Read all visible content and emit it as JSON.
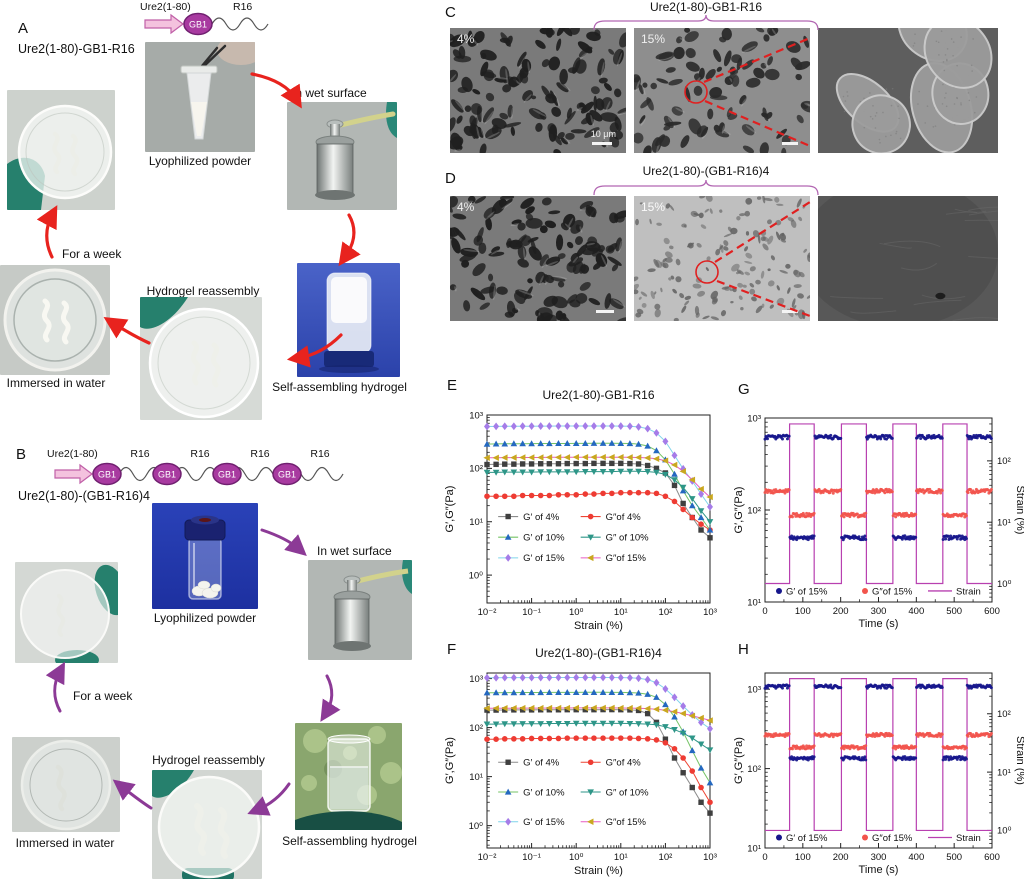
{
  "figure": {
    "panels": {
      "A": {
        "label": "A",
        "construct": "Ure2(1-80)-GB1-R16",
        "schematic": {
          "arrow_label": "Ure2(1-80)",
          "domain_label": "GB1",
          "tail_label": "R16"
        },
        "captions": {
          "powder": "Lyophilized powder",
          "wet_surface": "In wet surface",
          "hydrogel": "Self-assembling hydrogel",
          "reassembly": "Hydrogel reassembly",
          "immersed": "Immersed in water",
          "week": "For a week"
        }
      },
      "B": {
        "label": "B",
        "construct": "Ure2(1-80)-(GB1-R16)4",
        "schematic": {
          "arrow_label": "Ure2(1-80)",
          "domain_label": "GB1",
          "tail_label": "R16",
          "repeats": 4
        },
        "captions": {
          "powder": "Lyophilized powder",
          "wet_surface": "In wet surface",
          "hydrogel": "Self-assembling hydrogel",
          "reassembly": "Hydrogel reassembly",
          "immersed": "Immersed in water",
          "week": "For a week"
        }
      },
      "C": {
        "label": "C",
        "title": "Ure2(1-80)-GB1-R16",
        "labels": {
          "img1": "4%",
          "img2": "15%"
        },
        "scale_bar": "10 μm"
      },
      "D": {
        "label": "D",
        "title": "Ure2(1-80)-(GB1-R16)4",
        "labels": {
          "img1": "4%",
          "img2": "15%"
        }
      },
      "E": {
        "label": "E"
      },
      "F": {
        "label": "F"
      },
      "G": {
        "label": "G"
      },
      "H": {
        "label": "H"
      }
    }
  },
  "colors": {
    "arrow_panel_a": "#e8231e",
    "arrow_panel_b": "#8c3a96",
    "brace": "#b266b2",
    "sem_annotation": "#e02020",
    "gb1_fill": "#a83aa0",
    "schematic_arrow_fill": "#f4c2de",
    "glove": "#26806d"
  },
  "chart_data": [
    {
      "id": "E",
      "type": "line",
      "title": "Ure2(1-80)-GB1-R16",
      "xlabel": "Strain (%)",
      "ylabel": "G′,G″(Pa)",
      "xscale": "log",
      "yscale": "log",
      "xlim": [
        0.01,
        1000
      ],
      "ylim": [
        0.3,
        1000
      ],
      "x": [
        0.01,
        0.016,
        0.025,
        0.04,
        0.063,
        0.1,
        0.16,
        0.25,
        0.4,
        0.63,
        1,
        1.6,
        2.5,
        4,
        6.3,
        10,
        16,
        25,
        40,
        63,
        100,
        160,
        250,
        400,
        630,
        1000
      ],
      "series": [
        {
          "name": "G′ of 4%",
          "marker": "square",
          "color": "#3f3f3f",
          "line": "#8c8c8c",
          "values": [
            118,
            119,
            120,
            120,
            121,
            121,
            122,
            122,
            122,
            123,
            123,
            123,
            124,
            124,
            124,
            124,
            123,
            121,
            113,
            100,
            82,
            48,
            22,
            12,
            7,
            5
          ]
        },
        {
          "name": "G″of 4%",
          "marker": "circle",
          "color": "#ee3b33",
          "line": "#ee4433",
          "values": [
            30,
            30,
            30,
            30,
            31,
            31,
            31,
            31,
            32,
            32,
            32,
            33,
            33,
            34,
            34,
            35,
            35,
            35,
            35,
            34,
            30,
            24,
            17,
            12,
            9,
            7
          ]
        },
        {
          "name": "G′ of 10%",
          "marker": "triangle-up",
          "color": "#2468c0",
          "line": "#74c365",
          "values": [
            285,
            287,
            288,
            290,
            290,
            291,
            292,
            292,
            293,
            293,
            294,
            294,
            295,
            295,
            295,
            294,
            292,
            285,
            262,
            215,
            145,
            78,
            38,
            20,
            12,
            7
          ]
        },
        {
          "name": "G″ of 10%",
          "marker": "triangle-down",
          "color": "#2e9688",
          "line": "#2e9688",
          "values": [
            84,
            84,
            85,
            85,
            85,
            85,
            86,
            86,
            86,
            86,
            86,
            87,
            87,
            87,
            87,
            88,
            88,
            88,
            87,
            84,
            77,
            61,
            44,
            27,
            16,
            10
          ]
        },
        {
          "name": "G′ of 15%",
          "marker": "diamond",
          "color": "#a57ce8",
          "line": "#7fd4ea",
          "values": [
            610,
            612,
            615,
            615,
            618,
            618,
            620,
            620,
            621,
            621,
            622,
            622,
            623,
            623,
            622,
            620,
            615,
            598,
            556,
            462,
            320,
            175,
            98,
            58,
            33,
            19
          ]
        },
        {
          "name": "G″of 15%",
          "marker": "triangle-left",
          "color": "#c9a71f",
          "line": "#e75bc3",
          "values": [
            158,
            158,
            159,
            159,
            160,
            160,
            160,
            161,
            161,
            161,
            162,
            162,
            162,
            162,
            162,
            162,
            161,
            160,
            157,
            151,
            139,
            116,
            88,
            61,
            41,
            29
          ]
        }
      ],
      "legend": {
        "cols": [
          0.05,
          0.42
        ],
        "rows": [
          0.54,
          0.65,
          0.76
        ]
      }
    },
    {
      "id": "F",
      "type": "line",
      "title": "Ure2(1-80)-(GB1-R16)4",
      "xlabel": "Strain (%)",
      "ylabel": "G′,G″(Pa)",
      "xscale": "log",
      "yscale": "log",
      "xlim": [
        0.01,
        1000
      ],
      "ylim": [
        0.35,
        1300
      ],
      "x": [
        0.01,
        0.016,
        0.025,
        0.04,
        0.063,
        0.1,
        0.16,
        0.25,
        0.4,
        0.63,
        1,
        1.6,
        2.5,
        4,
        6.3,
        10,
        16,
        25,
        40,
        63,
        100,
        160,
        250,
        400,
        630,
        1000
      ],
      "series": [
        {
          "name": "G′ of 4%",
          "marker": "square",
          "color": "#3f3f3f",
          "line": "#8c8c8c",
          "values": [
            228,
            228,
            229,
            230,
            230,
            230,
            231,
            231,
            231,
            232,
            232,
            232,
            232,
            233,
            233,
            232,
            230,
            224,
            193,
            128,
            58,
            24,
            12,
            6,
            3,
            1.8
          ]
        },
        {
          "name": "G″of 4%",
          "marker": "circle",
          "color": "#ee3b33",
          "line": "#ee4433",
          "values": [
            58,
            58,
            59,
            59,
            59,
            60,
            60,
            60,
            60,
            61,
            61,
            61,
            61,
            61,
            61,
            61,
            61,
            60,
            59,
            56,
            49,
            37,
            24,
            13,
            6,
            3
          ]
        },
        {
          "name": "G′ of 10%",
          "marker": "triangle-up",
          "color": "#2468c0",
          "line": "#74c365",
          "values": [
            515,
            516,
            518,
            518,
            520,
            520,
            521,
            522,
            522,
            523,
            523,
            524,
            524,
            524,
            523,
            522,
            518,
            508,
            478,
            415,
            295,
            165,
            82,
            34,
            15,
            7.5
          ]
        },
        {
          "name": "G″ of 10%",
          "marker": "triangle-down",
          "color": "#2e9688",
          "line": "#2e9688",
          "values": [
            118,
            118,
            119,
            119,
            120,
            120,
            120,
            121,
            121,
            121,
            122,
            122,
            122,
            122,
            122,
            122,
            121,
            120,
            118,
            114,
            104,
            91,
            77,
            61,
            46,
            35
          ]
        },
        {
          "name": "G′ of 15%",
          "marker": "diamond",
          "color": "#a57ce8",
          "line": "#7fd4ea",
          "values": [
            1040,
            1042,
            1045,
            1045,
            1048,
            1048,
            1050,
            1050,
            1051,
            1051,
            1052,
            1052,
            1052,
            1051,
            1050,
            1048,
            1040,
            1018,
            955,
            825,
            615,
            415,
            275,
            182,
            128,
            95
          ]
        },
        {
          "name": "G″of 15%",
          "marker": "triangle-left",
          "color": "#c9a71f",
          "line": "#e75bc3",
          "values": [
            248,
            248,
            249,
            249,
            250,
            250,
            250,
            251,
            251,
            251,
            252,
            252,
            252,
            252,
            252,
            251,
            250,
            248,
            244,
            237,
            227,
            211,
            194,
            174,
            157,
            140
          ]
        }
      ],
      "legend": {
        "cols": [
          0.05,
          0.42
        ],
        "rows": [
          0.51,
          0.68,
          0.85
        ]
      }
    },
    {
      "id": "G",
      "type": "step",
      "xlabel": "Time (s)",
      "ylabel": "G′,G″(Pa)",
      "ylabel_right": "Strain (%)",
      "xlim": [
        0,
        600
      ],
      "xtick": 100,
      "ylim": [
        10,
        1000
      ],
      "ylim_right": [
        0.5,
        500
      ],
      "strain": {
        "label": "Strain",
        "color": "#b840b0",
        "low": 1,
        "high": 400,
        "windows": [
          [
            65,
            130
          ],
          [
            202,
            268
          ],
          [
            338,
            400
          ],
          [
            470,
            534
          ]
        ]
      },
      "series": [
        {
          "name": "G′ of 15%",
          "color": "#16168c",
          "rest": 620,
          "active": 50
        },
        {
          "name": "G″of 15%",
          "color": "#f2544c",
          "rest": 160,
          "active": 88
        }
      ]
    },
    {
      "id": "H",
      "type": "step",
      "xlabel": "Time (s)",
      "ylabel": "G′,G″(Pa)",
      "ylabel_right": "Strain (%)",
      "xlim": [
        0,
        600
      ],
      "xtick": 100,
      "ylim": [
        10,
        1600
      ],
      "ylim_right": [
        0.5,
        500
      ],
      "strain": {
        "label": "Strain",
        "color": "#b840b0",
        "low": 1,
        "high": 400,
        "windows": [
          [
            65,
            130
          ],
          [
            202,
            268
          ],
          [
            338,
            400
          ],
          [
            470,
            534
          ]
        ]
      },
      "series": [
        {
          "name": "G′ of 15%",
          "color": "#16168c",
          "rest": 1080,
          "active": 135
        },
        {
          "name": "G″of 15%",
          "color": "#f2544c",
          "rest": 265,
          "active": 185
        }
      ]
    }
  ]
}
